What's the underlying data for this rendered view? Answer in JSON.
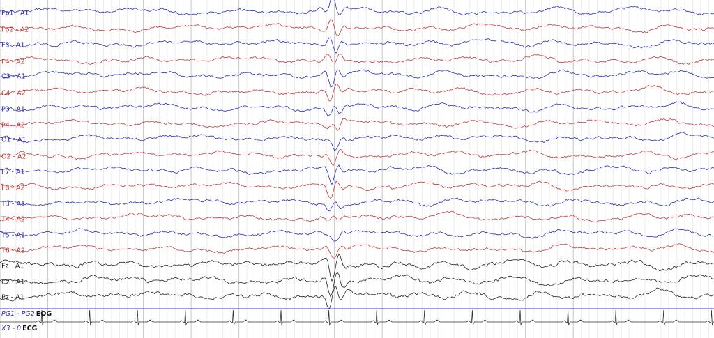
{
  "channels": [
    {
      "label": "Fp1 - A1",
      "color": "#2b2bb8"
    },
    {
      "label": "Fp2 - A2",
      "color": "#c03a3a"
    },
    {
      "label": "F3 - A1",
      "color": "#2b2bb8"
    },
    {
      "label": "F4 - A2",
      "color": "#c03a3a"
    },
    {
      "label": "C3 - A1",
      "color": "#2b2bb8"
    },
    {
      "label": "C4 - A2",
      "color": "#c03a3a"
    },
    {
      "label": "P3 - A1",
      "color": "#2b2bb8"
    },
    {
      "label": "P4 - A2",
      "color": "#c03a3a"
    },
    {
      "label": "O1 - A1",
      "color": "#2b2bb8"
    },
    {
      "label": "O2 - A2",
      "color": "#c03a3a"
    },
    {
      "label": "F7 - A1",
      "color": "#2b2bb8"
    },
    {
      "label": "F8 - A2",
      "color": "#c03a3a"
    },
    {
      "label": "T3 - A1",
      "color": "#2b2bb8"
    },
    {
      "label": "T4 - A2",
      "color": "#c03a3a"
    },
    {
      "label": "T5 - A1",
      "color": "#2b2bb8"
    },
    {
      "label": "T6 - A2",
      "color": "#c03a3a"
    },
    {
      "label": "Fz - A1",
      "color": "#222222"
    },
    {
      "label": "Cz - A1",
      "color": "#222222"
    },
    {
      "label": "Pz - A1",
      "color": "#222222"
    }
  ],
  "extra": [
    {
      "label": "PG1 - PG2",
      "kind": "EOG"
    },
    {
      "label": "X3 - 0",
      "kind": "ECG"
    }
  ]
}
